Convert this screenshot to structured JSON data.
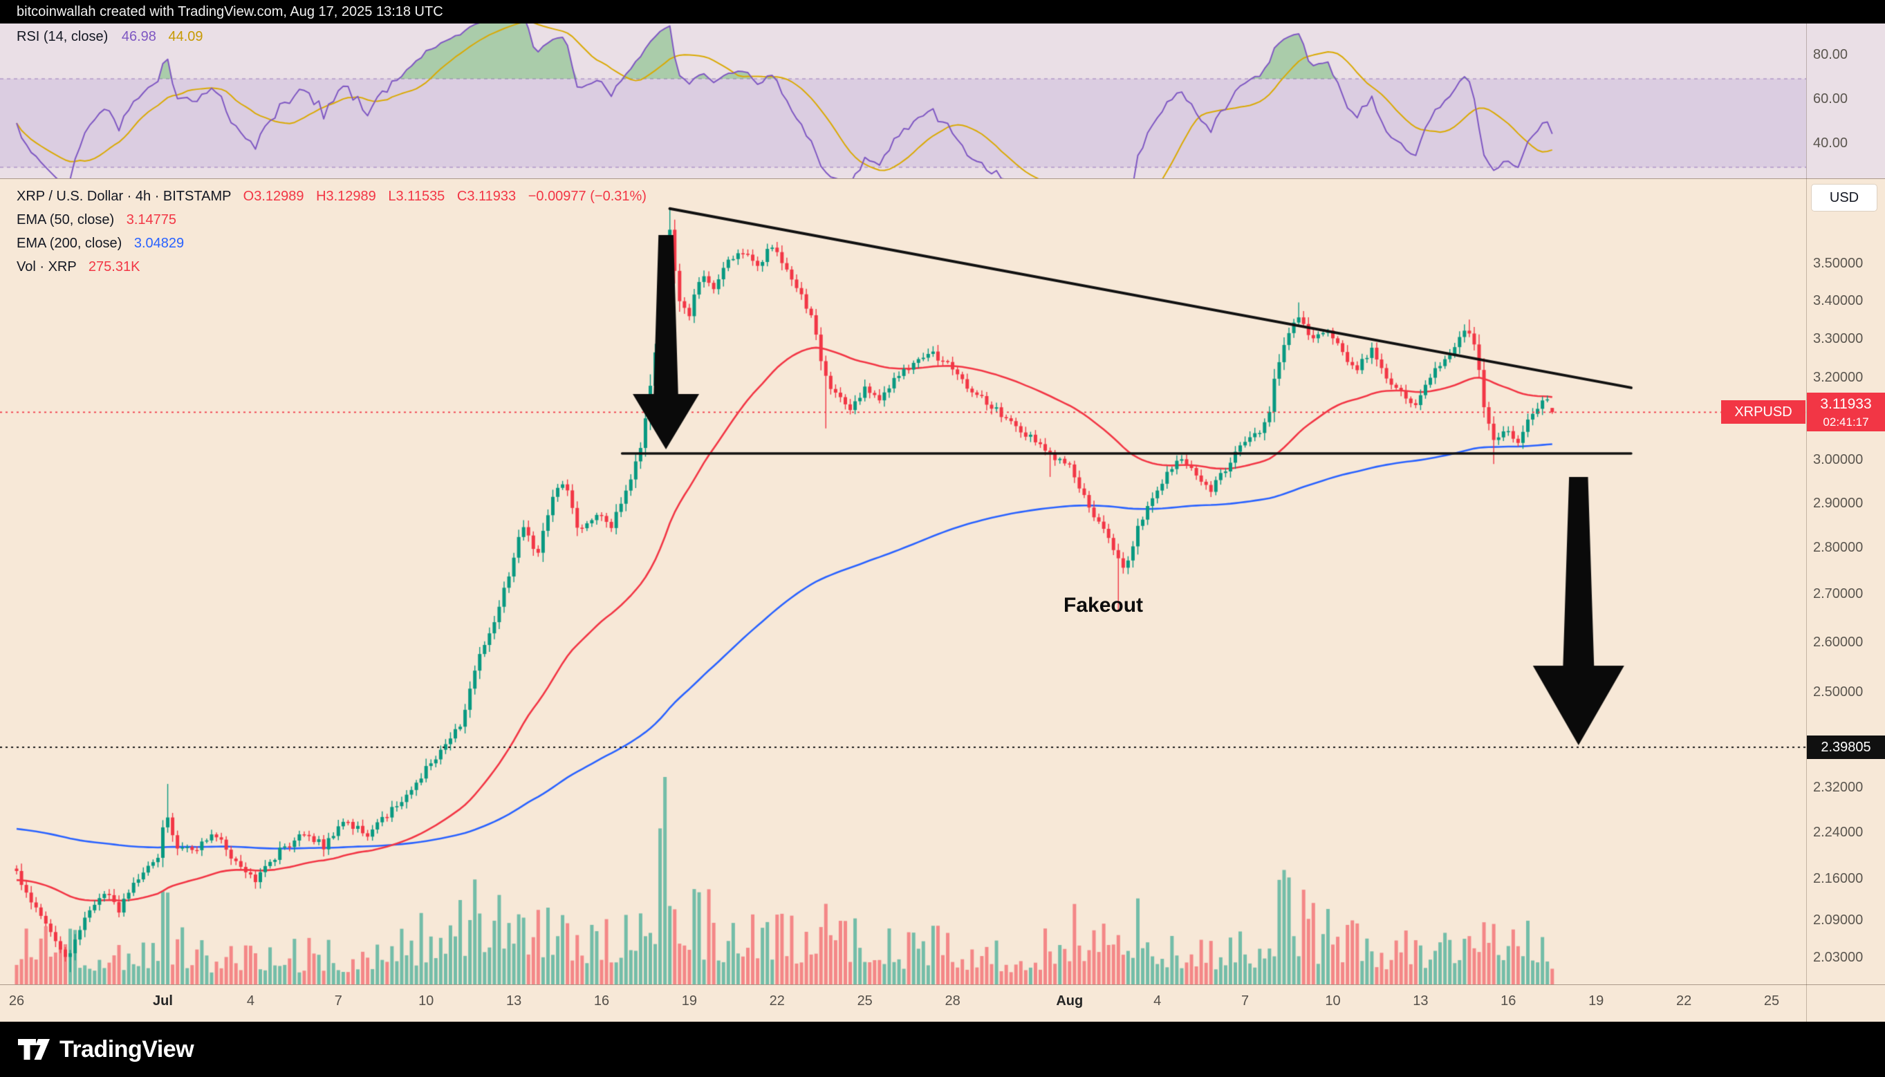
{
  "attribution_bar": {
    "text": "bitcoinwallah created with TradingView.com, Aug 17, 2025 13:18 UTC"
  },
  "rsi_panel": {
    "title": "RSI (14, close)",
    "value_rsi": "46.98",
    "value_ma": "44.09",
    "scale_labels": [
      {
        "label": "80.00",
        "value": 80
      },
      {
        "label": "60.00",
        "value": 60
      },
      {
        "label": "40.00",
        "value": 40
      }
    ],
    "overbought": 70,
    "oversold": 30,
    "colors": {
      "rsi": "#7e57c2",
      "ma": "#d9a903",
      "band_fill": "rgba(126,87,194,0.13)",
      "overbought_fill": "rgba(76,175,80,0.40)",
      "level_line": "rgba(120,86,170,0.55)"
    }
  },
  "main_panel": {
    "symbol_title": "XRP / U.S. Dollar · 4h · BITSTAMP",
    "open": "O3.12989",
    "high": "H3.12989",
    "low": "L3.11535",
    "close": "C3.11933",
    "change": "−0.00977 (−0.31%)",
    "indicators": [
      {
        "name": "EMA (50, close)",
        "value": "3.14775",
        "color": "#f23645"
      },
      {
        "name": "EMA (200, close)",
        "value": "3.04829",
        "color": "#2962ff"
      },
      {
        "name": "Vol · XRP",
        "value": "275.31K",
        "color": "#f23645"
      }
    ],
    "currency_button": "USD",
    "annotation": "Fakeout"
  },
  "price_scale": {
    "ticks": [
      {
        "label": "3.50000",
        "value": 3.5
      },
      {
        "label": "3.40000",
        "value": 3.4
      },
      {
        "label": "3.30000",
        "value": 3.3
      },
      {
        "label": "3.20000",
        "value": 3.2
      },
      {
        "label": "3.00000",
        "value": 3.0
      },
      {
        "label": "2.90000",
        "value": 2.9
      },
      {
        "label": "2.80000",
        "value": 2.8
      },
      {
        "label": "2.70000",
        "value": 2.7
      },
      {
        "label": "2.60000",
        "value": 2.6
      },
      {
        "label": "2.50000",
        "value": 2.5
      },
      {
        "label": "2.32000",
        "value": 2.32
      },
      {
        "label": "2.24000",
        "value": 2.24
      },
      {
        "label": "2.16000",
        "value": 2.16
      },
      {
        "label": "2.09000",
        "value": 2.09
      },
      {
        "label": "2.03000",
        "value": 2.03
      }
    ],
    "current": {
      "symbol_tag": "XRPUSD",
      "price": "3.11933",
      "countdown": "02:41:17"
    },
    "target": {
      "label": "2.39805",
      "value": 2.39805
    }
  },
  "time_axis": {
    "ticks": [
      {
        "label": "26",
        "day": 0
      },
      {
        "label": "Jul",
        "day": 5,
        "bold": true
      },
      {
        "label": "4",
        "day": 8
      },
      {
        "label": "7",
        "day": 11
      },
      {
        "label": "10",
        "day": 14
      },
      {
        "label": "13",
        "day": 17
      },
      {
        "label": "16",
        "day": 20
      },
      {
        "label": "19",
        "day": 23
      },
      {
        "label": "22",
        "day": 26
      },
      {
        "label": "25",
        "day": 29
      },
      {
        "label": "28",
        "day": 32
      },
      {
        "label": "Aug",
        "day": 36,
        "bold": true
      },
      {
        "label": "4",
        "day": 39
      },
      {
        "label": "7",
        "day": 42
      },
      {
        "label": "10",
        "day": 45
      },
      {
        "label": "13",
        "day": 48
      },
      {
        "label": "16",
        "day": 51
      },
      {
        "label": "19",
        "day": 54
      },
      {
        "label": "22",
        "day": 57
      },
      {
        "label": "25",
        "day": 60
      }
    ]
  },
  "footer": {
    "brand": "TradingView"
  },
  "chart_data": {
    "type": "candlestick",
    "symbol": "XRPUSD",
    "exchange": "BITSTAMP",
    "timeframe": "4h",
    "title": "XRP / U.S. Dollar · 4h · BITSTAMP",
    "ohlc_last": {
      "open": 3.12989,
      "high": 3.12989,
      "low": 3.11535,
      "close": 3.11933,
      "change": -0.00977,
      "change_pct": -0.31
    },
    "current_price": 3.11933,
    "ema50_last": 3.14775,
    "ema200_last": 3.04829,
    "rsi_last": 46.98,
    "rsi_ma_last": 44.09,
    "volume_last": "275.31K",
    "x_range_days": [
      "Jun 26",
      "Aug 26"
    ],
    "price_path": [
      [
        0,
        2.17
      ],
      [
        0.5,
        2.12
      ],
      [
        1,
        2.09
      ],
      [
        1.5,
        2.05
      ],
      [
        1.8,
        2.03
      ],
      [
        2.3,
        2.1
      ],
      [
        3,
        2.14
      ],
      [
        3.5,
        2.11
      ],
      [
        4,
        2.16
      ],
      [
        4.8,
        2.19
      ],
      [
        5.1,
        2.28
      ],
      [
        5.4,
        2.22
      ],
      [
        6,
        2.21
      ],
      [
        6.8,
        2.24
      ],
      [
        7.5,
        2.19
      ],
      [
        8.2,
        2.16
      ],
      [
        9,
        2.21
      ],
      [
        9.8,
        2.24
      ],
      [
        10.5,
        2.22
      ],
      [
        11.2,
        2.26
      ],
      [
        12,
        2.24
      ],
      [
        12.8,
        2.28
      ],
      [
        13.4,
        2.31
      ],
      [
        14,
        2.36
      ],
      [
        14.6,
        2.4
      ],
      [
        15.2,
        2.44
      ],
      [
        15.7,
        2.56
      ],
      [
        16.2,
        2.62
      ],
      [
        16.8,
        2.74
      ],
      [
        17.3,
        2.86
      ],
      [
        17.8,
        2.79
      ],
      [
        18.3,
        2.92
      ],
      [
        18.8,
        2.95
      ],
      [
        19.2,
        2.84
      ],
      [
        19.8,
        2.88
      ],
      [
        20.3,
        2.85
      ],
      [
        20.8,
        2.93
      ],
      [
        21.3,
        3.02
      ],
      [
        21.8,
        3.25
      ],
      [
        22.1,
        3.45
      ],
      [
        22.33,
        3.6
      ],
      [
        22.6,
        3.42
      ],
      [
        23,
        3.37
      ],
      [
        23.4,
        3.48
      ],
      [
        23.8,
        3.44
      ],
      [
        24.3,
        3.51
      ],
      [
        24.8,
        3.54
      ],
      [
        25.3,
        3.49
      ],
      [
        25.8,
        3.56
      ],
      [
        26.3,
        3.5
      ],
      [
        26.8,
        3.43
      ],
      [
        27.2,
        3.35
      ],
      [
        27.6,
        3.22
      ],
      [
        28,
        3.16
      ],
      [
        28.5,
        3.13
      ],
      [
        29,
        3.18
      ],
      [
        29.5,
        3.15
      ],
      [
        30,
        3.2
      ],
      [
        30.6,
        3.24
      ],
      [
        31.2,
        3.27
      ],
      [
        31.8,
        3.24
      ],
      [
        32.4,
        3.19
      ],
      [
        33,
        3.15
      ],
      [
        33.6,
        3.12
      ],
      [
        34.2,
        3.08
      ],
      [
        34.8,
        3.05
      ],
      [
        35.4,
        3.01
      ],
      [
        36,
        2.99
      ],
      [
        36.5,
        2.92
      ],
      [
        37,
        2.86
      ],
      [
        37.5,
        2.8
      ],
      [
        37.9,
        2.76
      ],
      [
        38.3,
        2.84
      ],
      [
        38.8,
        2.92
      ],
      [
        39.3,
        2.97
      ],
      [
        39.8,
        3.01
      ],
      [
        40.3,
        2.98
      ],
      [
        40.8,
        2.93
      ],
      [
        41.3,
        2.98
      ],
      [
        41.8,
        3.03
      ],
      [
        42.3,
        3.06
      ],
      [
        42.8,
        3.1
      ],
      [
        43.1,
        3.24
      ],
      [
        43.5,
        3.32
      ],
      [
        43.9,
        3.37
      ],
      [
        44.3,
        3.3
      ],
      [
        44.8,
        3.34
      ],
      [
        45.3,
        3.27
      ],
      [
        45.8,
        3.22
      ],
      [
        46.3,
        3.28
      ],
      [
        46.8,
        3.21
      ],
      [
        47.3,
        3.17
      ],
      [
        47.8,
        3.14
      ],
      [
        48.3,
        3.2
      ],
      [
        48.8,
        3.25
      ],
      [
        49.3,
        3.3
      ],
      [
        49.6,
        3.33
      ],
      [
        49.9,
        3.27
      ],
      [
        50.2,
        3.12
      ],
      [
        50.5,
        3.05
      ],
      [
        50.9,
        3.08
      ],
      [
        51.3,
        3.04
      ],
      [
        51.7,
        3.1
      ],
      [
        52,
        3.13
      ],
      [
        52.3,
        3.15
      ],
      [
        52.5,
        3.11933
      ]
    ],
    "wick_events": [
      {
        "day": 1.8,
        "low": 2.01
      },
      {
        "day": 5.1,
        "high": 2.33
      },
      {
        "day": 22.33,
        "high": 3.66
      },
      {
        "day": 27.6,
        "low": 3.08
      },
      {
        "day": 35.4,
        "low": 2.965
      },
      {
        "day": 37.7,
        "low": 2.67
      },
      {
        "day": 43.9,
        "high": 3.4
      },
      {
        "day": 49.6,
        "high": 3.355
      },
      {
        "day": 50.5,
        "low": 2.995
      }
    ],
    "volume_profile": [
      [
        0,
        0.38
      ],
      [
        1.2,
        0.52
      ],
      [
        2,
        0.34
      ],
      [
        3,
        0.22
      ],
      [
        4.6,
        0.3
      ],
      [
        5.05,
        0.55
      ],
      [
        5.5,
        0.3
      ],
      [
        6.5,
        0.22
      ],
      [
        8,
        0.2
      ],
      [
        9.5,
        0.24
      ],
      [
        11,
        0.22
      ],
      [
        13,
        0.28
      ],
      [
        14.3,
        0.4
      ],
      [
        15.3,
        0.55
      ],
      [
        15.8,
        0.65
      ],
      [
        16.5,
        0.6
      ],
      [
        17.3,
        0.52
      ],
      [
        18.2,
        0.45
      ],
      [
        19,
        0.4
      ],
      [
        20,
        0.36
      ],
      [
        21,
        0.45
      ],
      [
        21.8,
        0.6
      ],
      [
        22.2,
        1.0
      ],
      [
        22.7,
        0.72
      ],
      [
        23.3,
        0.5
      ],
      [
        24.5,
        0.42
      ],
      [
        25.5,
        0.4
      ],
      [
        26.5,
        0.38
      ],
      [
        27.6,
        0.5
      ],
      [
        28.6,
        0.36
      ],
      [
        30,
        0.28
      ],
      [
        31.3,
        0.3
      ],
      [
        32.5,
        0.26
      ],
      [
        34,
        0.24
      ],
      [
        35.3,
        0.3
      ],
      [
        36.3,
        0.45
      ],
      [
        37,
        0.5
      ],
      [
        37.8,
        0.58
      ],
      [
        38.5,
        0.42
      ],
      [
        39.5,
        0.32
      ],
      [
        40.5,
        0.28
      ],
      [
        41.5,
        0.28
      ],
      [
        42.5,
        0.34
      ],
      [
        43.1,
        0.6
      ],
      [
        43.8,
        0.52
      ],
      [
        44.5,
        0.4
      ],
      [
        45.5,
        0.34
      ],
      [
        46.5,
        0.3
      ],
      [
        47.5,
        0.27
      ],
      [
        48.5,
        0.3
      ],
      [
        49.5,
        0.42
      ],
      [
        50.25,
        0.7
      ],
      [
        50.8,
        0.48
      ],
      [
        51.5,
        0.34
      ],
      [
        52.2,
        0.26
      ],
      [
        52.5,
        0.22
      ]
    ],
    "support_line": {
      "price": 3.02,
      "from_day": 20.7,
      "to_day": 55.2
    },
    "trendline": {
      "from": {
        "day": 22.33,
        "price": 3.66
      },
      "to": {
        "day": 55.2,
        "price": 3.18
      }
    },
    "target_line": {
      "price": 2.39805
    },
    "arrows": [
      {
        "x_day": 22.2,
        "from_price": 3.585,
        "to_price": 3.03,
        "shaft_w": 30,
        "head_w": 96,
        "head_h": 80
      },
      {
        "x_day": 53.4,
        "from_price": 2.965,
        "to_price": 2.402,
        "shaft_w": 38,
        "head_w": 132,
        "head_h": 115
      }
    ],
    "colors": {
      "up": "#089981",
      "down": "#f23645",
      "ema50": "#f23645",
      "ema200": "#2962ff",
      "vol_up": "rgba(8,153,129,0.55)",
      "vol_down": "rgba(242,54,69,0.55)",
      "line": "#111111"
    },
    "rsi": {
      "period": 14,
      "ma_period": 14
    }
  }
}
